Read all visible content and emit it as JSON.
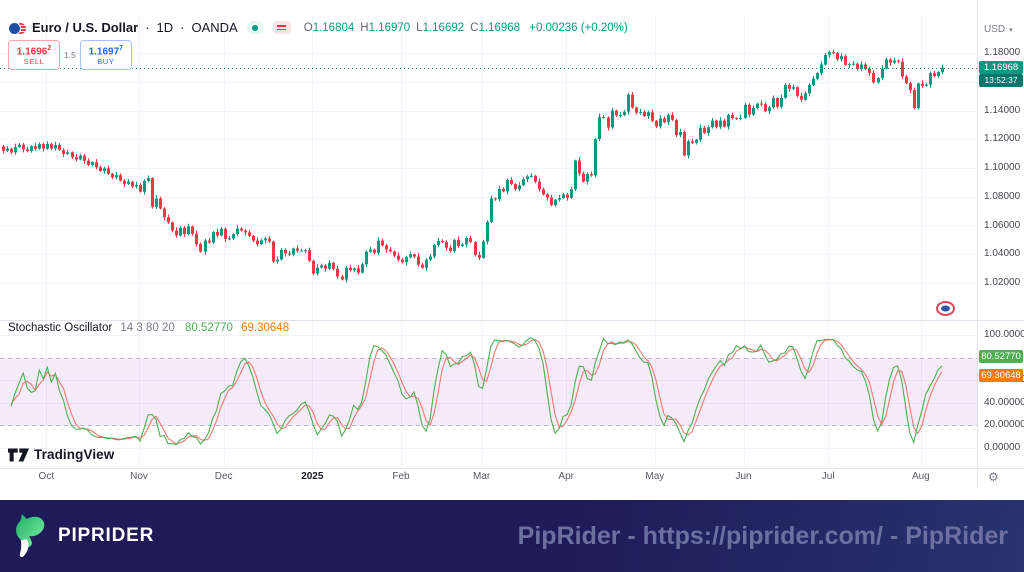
{
  "header": {
    "symbol_title": "Euro / U.S. Dollar",
    "sep": "·",
    "interval": "1D",
    "exchange": "OANDA",
    "ohlc_items": [
      {
        "k": "O",
        "v": "1.16804"
      },
      {
        "k": "H",
        "v": "1.16970"
      },
      {
        "k": "L",
        "v": "1.16692"
      },
      {
        "k": "C",
        "v": "1.16968"
      }
    ],
    "change": "+0.00236 (+0.20%)",
    "sell": {
      "price_main": "1.1696",
      "price_sup": "2",
      "label": "SELL"
    },
    "buy": {
      "price_main": "1.1697",
      "price_sup": "7",
      "label": "BUY"
    },
    "spread": "1.5"
  },
  "price_scale": {
    "currency": "USD",
    "last_price": "1.16968",
    "countdown": "13:52:37"
  },
  "indicator": {
    "name": "Stochastic Oscillator",
    "params": "14 3 80 20",
    "k_value": "80.52770",
    "d_value": "69.30648"
  },
  "watermark": {
    "brand": "TradingView"
  },
  "time_axis": {
    "gear_icon": "⚙"
  },
  "footer": {
    "brand": "PIPRIDER",
    "caption": "PipRider - https://piprider.com/ - PipRider"
  },
  "colors": {
    "up": "#089981",
    "down": "#f23645",
    "grid": "#f0f3fa",
    "stoch_k": "#4caf50",
    "stoch_d": "#ef7a70",
    "band_fill": "rgba(186,104,200,0.13)",
    "band_line": "rgba(149,152,161,0.6)",
    "k_badge": "#4caf50",
    "d_badge": "#f57c00",
    "footer_bg": "#1f1a58"
  },
  "chart_data": {
    "type": "candlestick",
    "symbol": "EUR/USD",
    "timeframe": "1D",
    "title": "Euro / U.S. Dollar · 1D · OANDA",
    "ohlc_current": {
      "open": 1.16804,
      "high": 1.1697,
      "low": 1.16692,
      "close": 1.16968,
      "change": 0.00236,
      "change_pct": 0.2
    },
    "price_ticks": [
      1.18,
      1.16,
      1.14,
      1.12,
      1.1,
      1.08,
      1.06,
      1.04,
      1.02
    ],
    "price_axis_range": [
      0.996,
      1.1864
    ],
    "grid": true,
    "time_labels": [
      {
        "label": "Oct",
        "i": 11,
        "year": false
      },
      {
        "label": "Nov",
        "i": 34,
        "year": false
      },
      {
        "label": "Dec",
        "i": 55,
        "year": false
      },
      {
        "label": "2025",
        "i": 77,
        "year": true
      },
      {
        "label": "Feb",
        "i": 99,
        "year": false
      },
      {
        "label": "Mar",
        "i": 119,
        "year": false
      },
      {
        "label": "Apr",
        "i": 140,
        "year": false
      },
      {
        "label": "May",
        "i": 162,
        "year": false
      },
      {
        "label": "Jun",
        "i": 184,
        "year": false
      },
      {
        "label": "Jul",
        "i": 205,
        "year": false
      },
      {
        "label": "Aug",
        "i": 228,
        "year": false
      }
    ],
    "closes": [
      1.112,
      1.1135,
      1.1108,
      1.1146,
      1.1162,
      1.113,
      1.1118,
      1.1152,
      1.1134,
      1.1166,
      1.1135,
      1.1168,
      1.1135,
      1.116,
      1.1126,
      1.1098,
      1.111,
      1.1075,
      1.106,
      1.1086,
      1.105,
      1.1022,
      1.104,
      1.1005,
      1.098,
      1.0998,
      1.096,
      1.0935,
      1.095,
      1.0912,
      1.089,
      1.0905,
      1.0872,
      1.0882,
      1.0835,
      1.091,
      1.093,
      1.073,
      1.0788,
      1.0718,
      1.0658,
      1.0622,
      1.0565,
      1.053,
      1.0585,
      1.054,
      1.0594,
      1.0542,
      1.047,
      1.0418,
      1.0495,
      1.0482,
      1.0555,
      1.053,
      1.0577,
      1.0506,
      1.051,
      1.054,
      1.0578,
      1.0565,
      1.0552,
      1.0528,
      1.0495,
      1.047,
      1.0497,
      1.051,
      1.0489,
      1.035,
      1.0363,
      1.043,
      1.0405,
      1.0398,
      1.044,
      1.0424,
      1.0426,
      1.0428,
      1.0355,
      1.0266,
      1.0308,
      1.0322,
      1.03,
      1.034,
      1.0298,
      1.0245,
      1.0224,
      1.0306,
      1.0289,
      1.0302,
      1.0272,
      1.033,
      1.0417,
      1.0433,
      1.041,
      1.0495,
      1.0462,
      1.0432,
      1.042,
      1.039,
      1.0362,
      1.0344,
      1.0379,
      1.04,
      1.0384,
      1.0328,
      1.0306,
      1.0362,
      1.0384,
      1.0465,
      1.0492,
      1.0486,
      1.0445,
      1.0422,
      1.05,
      1.0458,
      1.0468,
      1.0512,
      1.0485,
      1.0395,
      1.0375,
      1.0489,
      1.0625,
      1.0789,
      1.0783,
      1.0854,
      1.0837,
      1.0917,
      1.0888,
      1.0853,
      1.088,
      1.0922,
      1.0942,
      1.0946,
      1.0905,
      1.0852,
      1.0816,
      1.0795,
      1.0742,
      1.078,
      1.0791,
      1.0815,
      1.0793,
      1.0852,
      1.1052,
      1.0962,
      1.0905,
      1.0958,
      1.0948,
      1.1202,
      1.1355,
      1.135,
      1.1282,
      1.14,
      1.1366,
      1.1368,
      1.1392,
      1.151,
      1.1421,
      1.1385,
      1.139,
      1.1362,
      1.1388,
      1.1328,
      1.129,
      1.1345,
      1.1318,
      1.137,
      1.1335,
      1.1228,
      1.125,
      1.1087,
      1.1186,
      1.1175,
      1.1197,
      1.128,
      1.1244,
      1.1284,
      1.133,
      1.1286,
      1.133,
      1.1288,
      1.1368,
      1.1347,
      1.1346,
      1.1349,
      1.144,
      1.1372,
      1.1418,
      1.1448,
      1.1444,
      1.1395,
      1.1422,
      1.1487,
      1.1426,
      1.1488,
      1.1578,
      1.1551,
      1.1562,
      1.1502,
      1.1475,
      1.152,
      1.1578,
      1.1621,
      1.166,
      1.172,
      1.1787,
      1.1806,
      1.18,
      1.1756,
      1.1778,
      1.1718,
      1.1722,
      1.1726,
      1.1689,
      1.172,
      1.169,
      1.1661,
      1.1596,
      1.1626,
      1.1692,
      1.1755,
      1.1733,
      1.1748,
      1.174,
      1.1636,
      1.159,
      1.1542,
      1.1418,
      1.1588,
      1.1572,
      1.158,
      1.166,
      1.164,
      1.1668,
      1.16968
    ],
    "last_price": 1.16968,
    "stochastic": {
      "type": "line",
      "k_length": 14,
      "smoothing": 3,
      "upper_band": 80,
      "lower_band": 20,
      "axis_ticks": [
        100,
        60,
        40,
        20,
        0
      ],
      "axis_range": [
        0,
        100
      ],
      "last_k": 80.5277,
      "last_d": 69.30648
    }
  }
}
